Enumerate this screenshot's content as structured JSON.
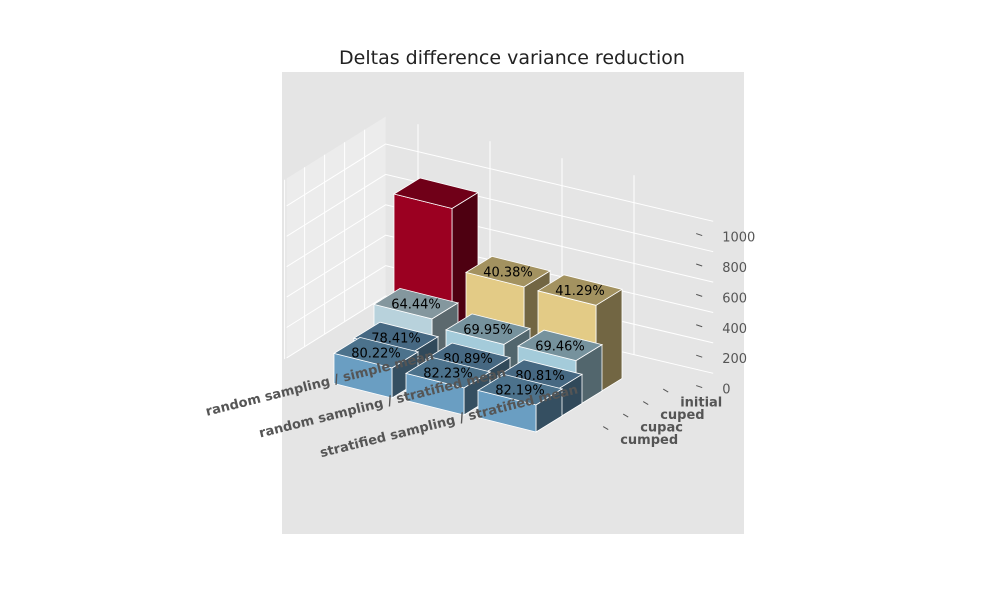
{
  "chart_data": {
    "type": "bar3d",
    "title": "Deltas difference variance reduction",
    "x_categories": [
      "random sampling / simple mean",
      "random sampling / stratified mean",
      "stratified sampling / stratified mean"
    ],
    "y_categories": [
      "initial",
      "cuped",
      "cupac",
      "cumped"
    ],
    "zticks": [
      "0",
      "200",
      "400",
      "600",
      "800",
      "1000"
    ],
    "zlim": [
      0,
      1000
    ],
    "series": [
      {
        "name": "initial",
        "values": [
          1000,
          596,
          587
        ],
        "labels": [
          "",
          "40.38%",
          "41.29%"
        ],
        "colors": [
          "#9b0021",
          "#e3cb86",
          "#e3cb86"
        ]
      },
      {
        "name": "cuped",
        "values": [
          356,
          300,
          305
        ],
        "labels": [
          "64.44%",
          "69.95%",
          "69.46%"
        ],
        "colors": [
          "#b8d2dc",
          "#a4cbda",
          "#a4cbda"
        ]
      },
      {
        "name": "cupac",
        "values": [
          216,
          191,
          192
        ],
        "labels": [
          "78.41%",
          "80.89%",
          "80.81%"
        ],
        "colors": [
          "#6191b4",
          "#6191b4",
          "#6191b4"
        ]
      },
      {
        "name": "cumped",
        "values": [
          198,
          178,
          178
        ],
        "labels": [
          "80.22%",
          "82.23%",
          "82.19%"
        ],
        "colors": [
          "#6a9ec2",
          "#6a9ec2",
          "#6a9ec2"
        ]
      }
    ],
    "grid": true,
    "background": "#e5e5e5"
  }
}
